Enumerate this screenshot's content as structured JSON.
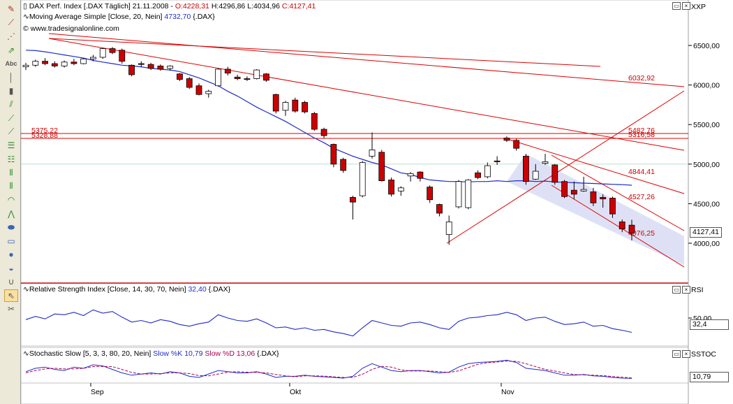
{
  "toolbar": {
    "tools": [
      {
        "icon": "pencil-icon",
        "glyph": "✎"
      },
      {
        "icon": "line-draw-icon",
        "glyph": "⟋"
      },
      {
        "icon": "multi-line-icon",
        "glyph": "⋰"
      },
      {
        "icon": "arrow-icon",
        "glyph": "⇗"
      },
      {
        "icon": "text-tool-icon",
        "glyph": "Abc"
      },
      {
        "icon": "vertical-line-icon",
        "glyph": "│"
      },
      {
        "icon": "ruler-icon",
        "glyph": "▮"
      },
      {
        "icon": "channel-icon",
        "glyph": "⫽"
      },
      {
        "icon": "fibonacci-fan-icon",
        "glyph": "⟋"
      },
      {
        "icon": "gann-line-icon",
        "glyph": "⟋"
      },
      {
        "icon": "fibonacci-retracement-icon",
        "glyph": "☰"
      },
      {
        "icon": "fibonacci-extension-icon",
        "glyph": "☷"
      },
      {
        "icon": "andrews-pitchfork-icon",
        "glyph": "⫴"
      },
      {
        "icon": "speed-lines-icon",
        "glyph": "⫴"
      },
      {
        "icon": "fibonacci-arcs-icon",
        "glyph": "◠"
      },
      {
        "icon": "elliott-wave-icon",
        "glyph": "⋀"
      },
      {
        "icon": "ellipse-icon",
        "glyph": "⬬"
      },
      {
        "icon": "rectangle-icon",
        "glyph": "▭"
      },
      {
        "icon": "circle-icon",
        "glyph": "●"
      },
      {
        "icon": "arc-icon",
        "glyph": "◒"
      },
      {
        "icon": "magnet-icon",
        "glyph": "∪"
      },
      {
        "icon": "pointer-icon",
        "glyph": "⇖"
      },
      {
        "icon": "delete-drawings-icon",
        "glyph": "✂"
      }
    ]
  },
  "price_pane": {
    "title_line": "DAX Perf. Index [.DAX  Täglich] 21.11.2008 - ",
    "ohlc": {
      "o": "O:4228,31",
      "h": "H:4296,86",
      "l": "L:4034,96",
      "c": "C:4127,41"
    },
    "ma_line_prefix": "Moving Average Simple [Close, 20, Nein] ",
    "ma_value": "4732,70",
    "ma_suffix": " {.DAX}",
    "copyright": "© www.tradesignalonline.com",
    "axis_title": "XXP",
    "last_price": "4127,41",
    "y_ticks": [
      "6500,00",
      "6000,00",
      "5500,00",
      "5000,00",
      "4500,00",
      "4000,00"
    ],
    "line_labels": [
      "6032,92",
      "5375,22",
      "5328,88",
      "5482,76",
      "5316,58",
      "4844,41",
      "4527,26",
      "4076,25"
    ]
  },
  "rsi_pane": {
    "title_prefix": "Relative Strength Index [Close, 14, 30, 70, Nein] ",
    "value": "32,40",
    "suffix": " {.DAX}",
    "axis_title": "RSI",
    "tick": "50,00",
    "last_value": "32,4"
  },
  "stoch_pane": {
    "title_prefix": "Stochastic Slow [5, 3, 3, 80, 20, Nein] ",
    "k_label": "Slow %K ",
    "k_value": "10,79",
    "d_label": " Slow %D ",
    "d_value": "13,06",
    "suffix": " {.DAX}",
    "axis_title": "SSTOC",
    "last_value": "10,79"
  },
  "x_axis": {
    "labels": [
      "Sep",
      "Okt",
      "Nov"
    ]
  },
  "colors": {
    "bear": "#cc0000",
    "bull": "#ffffff",
    "ma": "#1f2bc8",
    "trend": "#dd0000",
    "channel_fill": "#d8dcf4",
    "stoch_d": "#aa0055"
  },
  "chart_data": {
    "type": "candlestick",
    "instrument": "DAX Perf. Index",
    "interval": "Täglich",
    "ylim": [
      3600,
      6800
    ],
    "candles": [
      [
        6230,
        6280,
        6190,
        6250
      ],
      [
        6250,
        6320,
        6230,
        6300
      ],
      [
        6300,
        6340,
        6250,
        6270
      ],
      [
        6270,
        6300,
        6220,
        6240
      ],
      [
        6240,
        6310,
        6220,
        6290
      ],
      [
        6290,
        6330,
        6250,
        6270
      ],
      [
        6270,
        6340,
        6260,
        6330
      ],
      [
        6330,
        6380,
        6300,
        6350
      ],
      [
        6350,
        6470,
        6330,
        6460
      ],
      [
        6460,
        6480,
        6390,
        6410
      ],
      [
        6440,
        6460,
        6270,
        6300
      ],
      [
        6250,
        6260,
        6110,
        6130
      ],
      [
        6270,
        6300,
        6230,
        6260
      ],
      [
        6260,
        6280,
        6190,
        6210
      ],
      [
        6240,
        6260,
        6180,
        6200
      ],
      [
        6210,
        6250,
        6180,
        6240
      ],
      [
        6140,
        6150,
        6050,
        6070
      ],
      [
        6080,
        6100,
        5950,
        5970
      ],
      [
        5990,
        6020,
        5870,
        5880
      ],
      [
        5890,
        5940,
        5840,
        5920
      ],
      [
        5990,
        6210,
        5980,
        6200
      ],
      [
        6200,
        6230,
        6120,
        6150
      ],
      [
        6100,
        6130,
        6060,
        6080
      ],
      [
        6080,
        6110,
        6050,
        6070
      ],
      [
        6080,
        6200,
        6070,
        6190
      ],
      [
        6140,
        6150,
        6040,
        6060
      ],
      [
        5880,
        5890,
        5640,
        5670
      ],
      [
        5680,
        5800,
        5610,
        5780
      ],
      [
        5810,
        5840,
        5650,
        5670
      ],
      [
        5780,
        5800,
        5640,
        5660
      ],
      [
        5640,
        5660,
        5420,
        5440
      ],
      [
        5440,
        5460,
        5330,
        5360
      ],
      [
        5250,
        5260,
        4960,
        5000
      ],
      [
        5060,
        5080,
        4890,
        4920
      ],
      [
        4580,
        4600,
        4300,
        4520
      ],
      [
        4600,
        5040,
        4580,
        5020
      ],
      [
        5100,
        5400,
        5070,
        5180
      ],
      [
        5150,
        5180,
        4780,
        4790
      ],
      [
        4800,
        4830,
        4590,
        4620
      ],
      [
        4660,
        4720,
        4600,
        4700
      ],
      [
        4850,
        4900,
        4780,
        4880
      ],
      [
        4900,
        4910,
        4780,
        4820
      ],
      [
        4710,
        4730,
        4510,
        4550
      ],
      [
        4490,
        4500,
        4340,
        4380
      ],
      [
        4110,
        4350,
        3980,
        4270
      ],
      [
        4460,
        4800,
        4440,
        4780
      ],
      [
        4450,
        4810,
        4430,
        4800
      ],
      [
        4890,
        4920,
        4810,
        4830
      ],
      [
        4840,
        5020,
        4820,
        4980
      ],
      [
        5040,
        5100,
        4990,
        5030
      ],
      [
        5330,
        5350,
        5280,
        5300
      ],
      [
        5300,
        5320,
        5170,
        5200
      ],
      [
        5100,
        5130,
        4740,
        4780
      ],
      [
        4810,
        5000,
        4800,
        4910
      ],
      [
        5010,
        5130,
        4990,
        5030
      ],
      [
        4990,
        5000,
        4740,
        4770
      ],
      [
        4780,
        4800,
        4570,
        4590
      ],
      [
        4670,
        4780,
        4560,
        4620
      ],
      [
        4660,
        4840,
        4650,
        4680
      ],
      [
        4650,
        4700,
        4470,
        4510
      ],
      [
        4580,
        4620,
        4450,
        4560
      ],
      [
        4570,
        4590,
        4320,
        4370
      ],
      [
        4270,
        4300,
        4140,
        4180
      ],
      [
        4228.31,
        4296.86,
        4034.96,
        4127.41
      ]
    ],
    "ma_20": [
      6440,
      6435,
      6420,
      6400,
      6380,
      6360,
      6340,
      6310,
      6290,
      6270,
      6250,
      6240,
      6230,
      6210,
      6200,
      6190,
      6170,
      6130,
      6090,
      6040,
      5990,
      5920,
      5860,
      5790,
      5720,
      5660,
      5600,
      5540,
      5470,
      5400,
      5330,
      5270,
      5200,
      5150,
      5100,
      5060,
      5020,
      4990,
      4940,
      4890,
      4870,
      4830,
      4800,
      4790,
      4780,
      4780,
      4775,
      4780,
      4780,
      4790,
      4780,
      4790,
      4790,
      4780,
      4785,
      4775,
      4770,
      4765,
      4760,
      4755,
      4750,
      4745,
      4740,
      4733
    ],
    "horizontal_levels": [
      5375.22,
      5328.88
    ],
    "rsi": [
      48,
      52,
      49,
      55,
      54,
      57,
      53,
      60,
      56,
      58,
      51,
      45,
      47,
      44,
      48,
      46,
      42,
      40,
      43,
      45,
      54,
      50,
      47,
      46,
      49,
      44,
      38,
      39,
      36,
      38,
      35,
      36,
      33,
      31,
      28,
      38,
      47,
      44,
      41,
      40,
      44,
      45,
      42,
      38,
      36,
      46,
      50,
      51,
      53,
      54,
      57,
      54,
      47,
      50,
      51,
      46,
      42,
      43,
      45,
      40,
      41,
      37,
      35,
      32.4
    ],
    "rsi_ticks": [
      50
    ],
    "stoch_k": [
      40,
      55,
      60,
      50,
      45,
      60,
      55,
      70,
      65,
      50,
      35,
      25,
      30,
      35,
      30,
      40,
      35,
      20,
      15,
      30,
      45,
      40,
      35,
      35,
      40,
      30,
      15,
      20,
      20,
      25,
      20,
      18,
      15,
      12,
      20,
      55,
      75,
      60,
      45,
      40,
      45,
      45,
      40,
      35,
      38,
      60,
      75,
      80,
      82,
      85,
      90,
      80,
      55,
      50,
      45,
      35,
      25,
      25,
      28,
      22,
      20,
      15,
      12,
      10.79
    ],
    "stoch_d": [
      35,
      45,
      52,
      55,
      52,
      52,
      55,
      62,
      63,
      62,
      50,
      37,
      30,
      30,
      32,
      35,
      35,
      32,
      23,
      22,
      30,
      38,
      40,
      38,
      37,
      35,
      28,
      22,
      18,
      22,
      22,
      21,
      18,
      15,
      15,
      29,
      50,
      63,
      60,
      48,
      43,
      43,
      43,
      40,
      37,
      44,
      58,
      72,
      79,
      82,
      86,
      85,
      75,
      62,
      50,
      43,
      35,
      28,
      26,
      25,
      23,
      19,
      16,
      13.06
    ]
  }
}
